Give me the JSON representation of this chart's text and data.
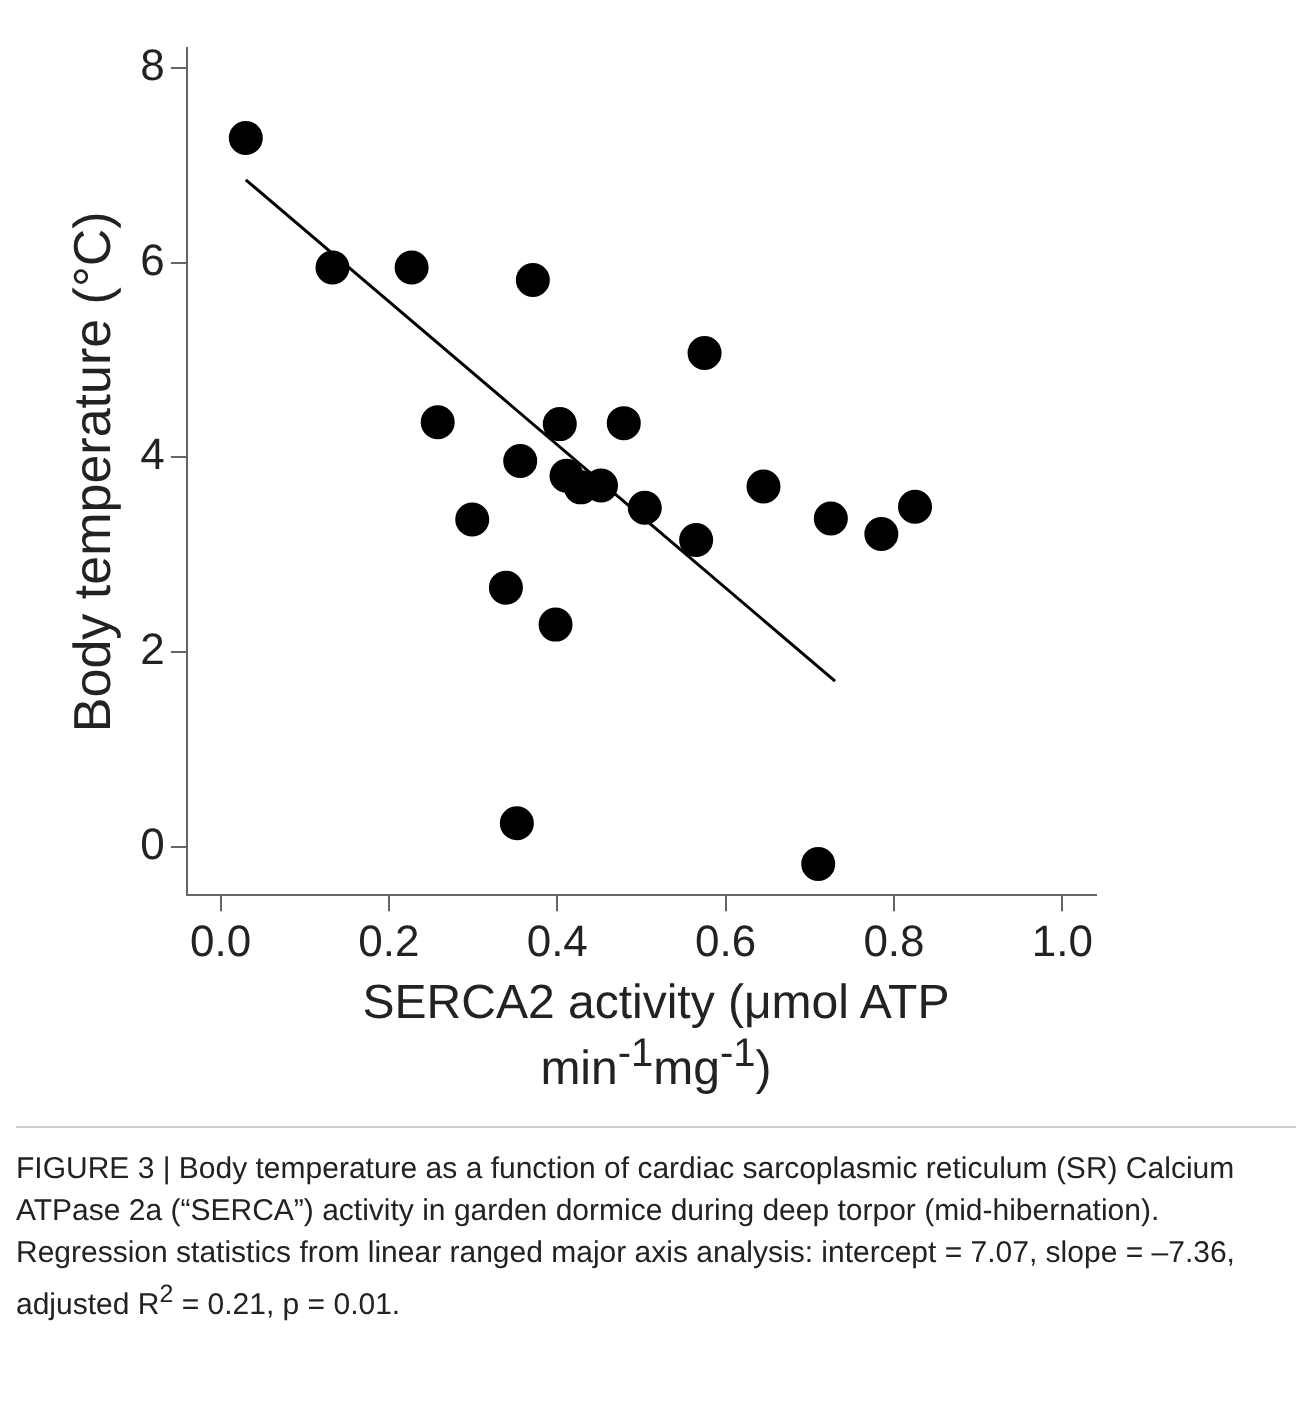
{
  "chart_data": {
    "type": "scatter",
    "ylabel": "Body temperature (°C)",
    "xlabel": "SERCA2 activity (μmol ATP  min$^{-1}$mg$^{-1}$)",
    "annotations": [
      "FIGURE 3 | Body temperature as a function of cardiac sarcoplasmic reticulum (SR) Calcium ATPase 2a (“SERCA”) activity in garden dormice during deep torpor (mid-hibernation). Regression statistics from linear ranged major axis analysis: intercept = 7.07, slope = –7.36, adjusted R$^{2}$ = 0.21, p = 0.01."
    ],
    "xlim": [
      -0.04,
      1.04
    ],
    "ylim": [
      -0.5,
      8.2
    ],
    "xticks": [
      {
        "value": 0,
        "label": "0.0"
      },
      0.2,
      0.4,
      0.6,
      0.8,
      {
        "value": 1,
        "label": "1.0"
      }
    ],
    "yticks": [
      0,
      2,
      4,
      6,
      8
    ],
    "grid": false,
    "series": [
      {
        "color": "#000000",
        "marker": "circle",
        "x": [
          0.03,
          0.133,
          0.227,
          0.371,
          0.258,
          0.403,
          0.479,
          0.356,
          0.411,
          0.428,
          0.452,
          0.504,
          0.299,
          0.339,
          0.398,
          0.352,
          0.575,
          0.565,
          0.645,
          0.71,
          0.725,
          0.785,
          0.825
        ],
        "values": [
          7.28,
          5.95,
          5.95,
          5.82,
          4.36,
          4.34,
          4.35,
          3.96,
          3.81,
          3.69,
          3.71,
          3.48,
          3.36,
          2.66,
          2.28,
          0.24,
          5.07,
          3.15,
          3.7,
          -0.18,
          3.37,
          3.21,
          3.49
        ]
      },
      {
        "type": "line",
        "color": "#000000",
        "marker": "none",
        "x": [
          0.03,
          0.73
        ],
        "values": [
          6.85,
          1.7
        ]
      }
    ]
  }
}
